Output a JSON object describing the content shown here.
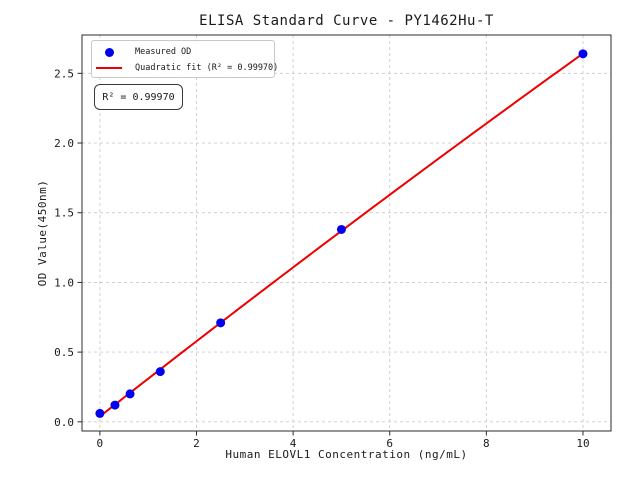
{
  "chart_data": {
    "type": "scatter",
    "title": "ELISA Standard Curve - PY1462Hu-T",
    "xlabel": "Human ELOVL1 Concentration (ng/mL)",
    "ylabel": "OD Value(450nm)",
    "xlim": [
      -0.37,
      10.58
    ],
    "ylim": [
      -0.066,
      2.775
    ],
    "x_ticks": [
      0,
      2,
      4,
      6,
      8,
      10
    ],
    "x_tick_labels": [
      "0",
      "2",
      "4",
      "6",
      "8",
      "10"
    ],
    "y_ticks": [
      0.0,
      0.5,
      1.0,
      1.5,
      2.0,
      2.5
    ],
    "y_tick_labels": [
      "0.0",
      "0.5",
      "1.0",
      "1.5",
      "2.0",
      "2.5"
    ],
    "grid": true,
    "grid_style": "dashed",
    "series": [
      {
        "name": "Measured OD",
        "type": "scatter",
        "color": "#0000ee",
        "x": [
          0,
          0.3125,
          0.625,
          1.25,
          2.5,
          5,
          10
        ],
        "y": [
          0.06,
          0.12,
          0.2,
          0.36,
          0.71,
          1.38,
          2.64
        ]
      },
      {
        "name": "Quadratic fit (R² = 0.99970)",
        "type": "quadratic-fit",
        "color": "#ee0000",
        "fit_of": "Measured OD",
        "x_range": [
          0,
          10
        ]
      }
    ],
    "legend": {
      "position": "upper left",
      "entries": [
        "Measured OD",
        "Quadratic fit (R² = 0.99970)"
      ]
    },
    "annotation": {
      "text": "R² = 0.99970"
    },
    "r_squared": "0.99970",
    "colors": {
      "points": "#0000ee",
      "fit_line": "#ee0000",
      "grid": "#cccccc",
      "spine": "#2b2b2b",
      "text": "#1a1a1a"
    }
  }
}
